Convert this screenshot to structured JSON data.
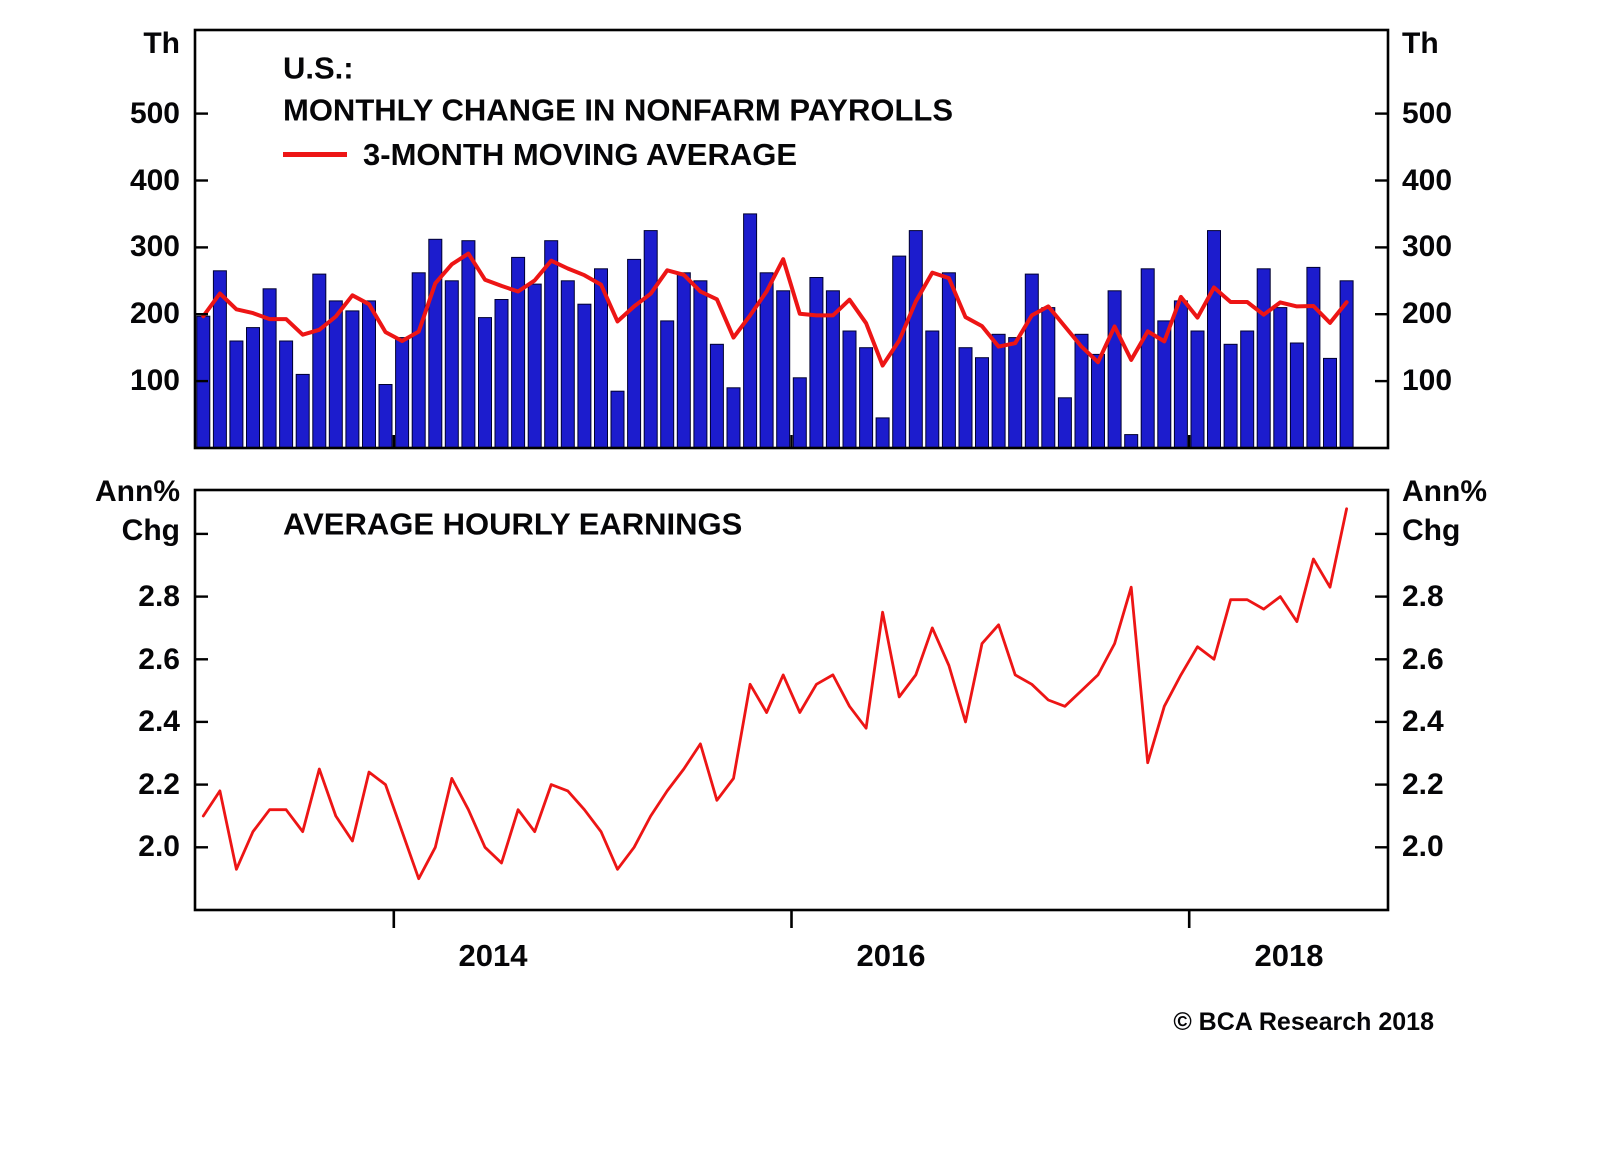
{
  "chart_data": [
    {
      "type": "bar",
      "title_lines": [
        "U.S.:",
        "MONTHLY CHANGE IN NONFARM PAYROLLS"
      ],
      "legend": "3-MONTH MOVING AVERAGE",
      "unit_label": "Th",
      "ylim": [
        0,
        625
      ],
      "yticks": [
        500,
        400,
        300,
        200,
        100
      ],
      "grid": false,
      "legend_position": "top-left-inside",
      "bar_color": "#1c1ccd",
      "ma_color": "#ed1515",
      "ma_window": 3,
      "x_axis": {
        "start": "2013-01",
        "end": "2018-12",
        "tick_years": [
          "2014",
          "2016",
          "2018"
        ]
      },
      "x_year_labels": [
        "2014",
        "2016",
        "2018"
      ],
      "year_tick_month_indexes": [
        12,
        36,
        60
      ],
      "axis_months": 72,
      "months": [
        "2013-01",
        "2013-02",
        "2013-03",
        "2013-04",
        "2013-05",
        "2013-06",
        "2013-07",
        "2013-08",
        "2013-09",
        "2013-10",
        "2013-11",
        "2013-12",
        "2014-01",
        "2014-02",
        "2014-03",
        "2014-04",
        "2014-05",
        "2014-06",
        "2014-07",
        "2014-08",
        "2014-09",
        "2014-10",
        "2014-11",
        "2014-12",
        "2015-01",
        "2015-02",
        "2015-03",
        "2015-04",
        "2015-05",
        "2015-06",
        "2015-07",
        "2015-08",
        "2015-09",
        "2015-10",
        "2015-11",
        "2015-12",
        "2016-01",
        "2016-02",
        "2016-03",
        "2016-04",
        "2016-05",
        "2016-06",
        "2016-07",
        "2016-08",
        "2016-09",
        "2016-10",
        "2016-11",
        "2016-12",
        "2017-01",
        "2017-02",
        "2017-03",
        "2017-04",
        "2017-05",
        "2017-06",
        "2017-07",
        "2017-08",
        "2017-09",
        "2017-10",
        "2017-11",
        "2017-12",
        "2018-01",
        "2018-02",
        "2018-03",
        "2018-04",
        "2018-05",
        "2018-06",
        "2018-07",
        "2018-08",
        "2018-09",
        "2018-10"
      ],
      "values": [
        197,
        265,
        160,
        180,
        238,
        160,
        110,
        260,
        220,
        205,
        220,
        95,
        165,
        262,
        312,
        250,
        310,
        195,
        222,
        285,
        245,
        310,
        250,
        215,
        268,
        85,
        282,
        325,
        190,
        262,
        250,
        155,
        90,
        350,
        262,
        235,
        105,
        255,
        235,
        175,
        150,
        45,
        287,
        325,
        175,
        262,
        150,
        135,
        170,
        165,
        260,
        210,
        75,
        170,
        140,
        235,
        20,
        268,
        190,
        220,
        175,
        325,
        155,
        175,
        268,
        210,
        157,
        270,
        134,
        250
      ]
    },
    {
      "type": "line",
      "title": "AVERAGE HOURLY EARNINGS",
      "unit_label_lines": [
        "Ann%",
        "Chg"
      ],
      "ylim": [
        1.8,
        3.14
      ],
      "yticks": [
        "2.8",
        "2.6",
        "2.4",
        "2.2",
        "2.0"
      ],
      "unlabeled_ticks": [
        3.0
      ],
      "grid": false,
      "line_color": "#ed1515",
      "months_same_as_top_panel": true,
      "values": [
        2.1,
        2.18,
        1.93,
        2.05,
        2.12,
        2.12,
        2.05,
        2.25,
        2.1,
        2.02,
        2.24,
        2.2,
        2.05,
        1.9,
        2.0,
        2.22,
        2.12,
        2.0,
        1.95,
        2.12,
        2.05,
        2.2,
        2.18,
        2.12,
        2.05,
        1.93,
        2.0,
        2.1,
        2.18,
        2.25,
        2.33,
        2.15,
        2.22,
        2.52,
        2.43,
        2.55,
        2.43,
        2.52,
        2.55,
        2.45,
        2.38,
        2.75,
        2.48,
        2.55,
        2.7,
        2.58,
        2.4,
        2.65,
        2.71,
        2.55,
        2.52,
        2.47,
        2.45,
        2.5,
        2.55,
        2.65,
        2.83,
        2.27,
        2.45,
        2.55,
        2.64,
        2.6,
        2.79,
        2.79,
        2.76,
        2.8,
        2.72,
        2.92,
        2.83,
        3.08
      ]
    }
  ],
  "footer": {
    "copyright": "© BCA Research 2018"
  }
}
